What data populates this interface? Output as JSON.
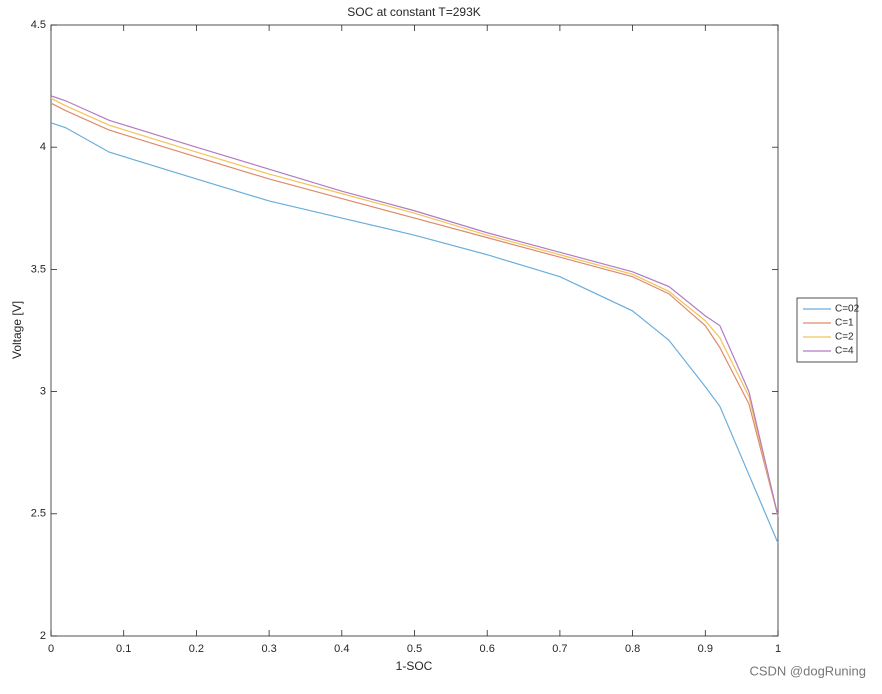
{
  "chart_data": {
    "type": "line",
    "title": "SOC at constant T=293K",
    "xlabel": "1-SOC",
    "ylabel": "Voltage [V]",
    "x": [
      0,
      0.02,
      0.08,
      0.2,
      0.3,
      0.4,
      0.5,
      0.6,
      0.7,
      0.8,
      0.85,
      0.9,
      0.92,
      0.96,
      1
    ],
    "series": [
      {
        "name": "C=02",
        "color": "#6aaedc",
        "values": [
          4.1,
          4.08,
          3.98,
          3.87,
          3.78,
          3.71,
          3.64,
          3.56,
          3.47,
          3.33,
          3.21,
          3.02,
          2.94,
          2.66,
          2.38
        ]
      },
      {
        "name": "C=1",
        "color": "#e08a6c",
        "values": [
          4.18,
          4.15,
          4.07,
          3.96,
          3.87,
          3.79,
          3.71,
          3.63,
          3.55,
          3.47,
          3.4,
          3.27,
          3.18,
          2.95,
          2.49
        ]
      },
      {
        "name": "C=2",
        "color": "#f0c45a",
        "values": [
          4.2,
          4.17,
          4.09,
          3.98,
          3.89,
          3.81,
          3.73,
          3.64,
          3.56,
          3.48,
          3.41,
          3.29,
          3.22,
          2.98,
          2.49
        ]
      },
      {
        "name": "C=4",
        "color": "#b27cc4",
        "values": [
          4.21,
          4.19,
          4.11,
          4.0,
          3.91,
          3.82,
          3.74,
          3.65,
          3.57,
          3.49,
          3.43,
          3.31,
          3.27,
          3.0,
          2.49
        ]
      }
    ],
    "xlim": [
      0,
      1
    ],
    "xticks": [
      0,
      0.1,
      0.2,
      0.3,
      0.4,
      0.5,
      0.6,
      0.7,
      0.8,
      0.9,
      1
    ],
    "ylim": [
      2,
      4.5
    ],
    "yticks": [
      2,
      2.5,
      3,
      3.5,
      4,
      4.5
    ],
    "legend": "right",
    "watermark": "CSDN @dogRuning"
  }
}
